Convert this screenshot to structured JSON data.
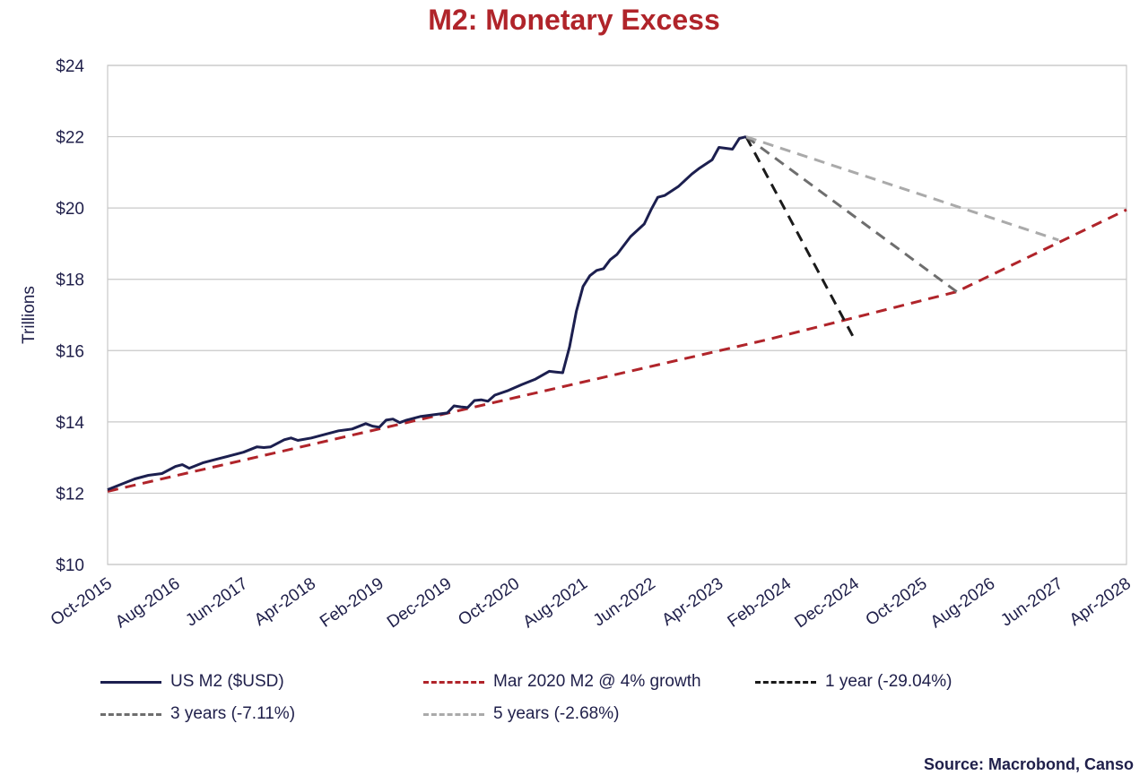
{
  "chart_data": {
    "type": "line",
    "title": "M2: Monetary Excess",
    "ylabel": "Trillions",
    "xlabel": "",
    "ylim": [
      10,
      24
    ],
    "yticks": [
      "$10",
      "$12",
      "$14",
      "$16",
      "$18",
      "$20",
      "$22",
      "$24"
    ],
    "xticks": [
      "Oct-2015",
      "Aug-2016",
      "Jun-2017",
      "Apr-2018",
      "Feb-2019",
      "Dec-2019",
      "Oct-2020",
      "Aug-2021",
      "Jun-2022",
      "Apr-2023",
      "Feb-2024",
      "Dec-2024",
      "Oct-2025",
      "Aug-2026",
      "Jun-2027",
      "Apr-2028"
    ],
    "x_range": [
      "2015-10",
      "2028-04"
    ],
    "grid": "horizontal",
    "legend_position": "bottom",
    "series": [
      {
        "name": "US M2 ($USD)",
        "color": "#1c1f4f",
        "style": "solid",
        "points": [
          [
            "2015-10",
            12.1
          ],
          [
            "2015-12",
            12.25
          ],
          [
            "2016-02",
            12.4
          ],
          [
            "2016-04",
            12.5
          ],
          [
            "2016-06",
            12.55
          ],
          [
            "2016-08",
            12.75
          ],
          [
            "2016-09",
            12.8
          ],
          [
            "2016-10",
            12.7
          ],
          [
            "2016-12",
            12.85
          ],
          [
            "2017-02",
            12.95
          ],
          [
            "2017-04",
            13.05
          ],
          [
            "2017-06",
            13.15
          ],
          [
            "2017-08",
            13.3
          ],
          [
            "2017-09",
            13.28
          ],
          [
            "2017-10",
            13.3
          ],
          [
            "2017-12",
            13.5
          ],
          [
            "2018-01",
            13.55
          ],
          [
            "2018-02",
            13.48
          ],
          [
            "2018-04",
            13.55
          ],
          [
            "2018-06",
            13.65
          ],
          [
            "2018-08",
            13.75
          ],
          [
            "2018-10",
            13.8
          ],
          [
            "2018-12",
            13.95
          ],
          [
            "2019-01",
            13.88
          ],
          [
            "2019-02",
            13.85
          ],
          [
            "2019-03",
            14.05
          ],
          [
            "2019-04",
            14.08
          ],
          [
            "2019-05",
            13.98
          ],
          [
            "2019-06",
            14.05
          ],
          [
            "2019-08",
            14.15
          ],
          [
            "2019-10",
            14.2
          ],
          [
            "2019-12",
            14.25
          ],
          [
            "2020-01",
            14.45
          ],
          [
            "2020-02",
            14.42
          ],
          [
            "2020-03",
            14.4
          ],
          [
            "2020-04",
            14.6
          ],
          [
            "2020-05",
            14.62
          ],
          [
            "2020-06",
            14.58
          ],
          [
            "2020-07",
            14.75
          ],
          [
            "2020-09",
            14.88
          ],
          [
            "2020-11",
            15.05
          ],
          [
            "2021-01",
            15.2
          ],
          [
            "2021-03",
            15.42
          ],
          [
            "2021-04",
            15.4
          ],
          [
            "2021-05",
            15.38
          ],
          [
            "2021-06",
            16.1
          ],
          [
            "2021-07",
            17.1
          ],
          [
            "2021-08",
            17.8
          ],
          [
            "2021-09",
            18.1
          ],
          [
            "2021-10",
            18.25
          ],
          [
            "2021-11",
            18.3
          ],
          [
            "2021-12",
            18.55
          ],
          [
            "2022-01",
            18.7
          ],
          [
            "2022-03",
            19.2
          ],
          [
            "2022-05",
            19.55
          ],
          [
            "2022-06",
            19.95
          ],
          [
            "2022-07",
            20.3
          ],
          [
            "2022-08",
            20.35
          ],
          [
            "2022-10",
            20.6
          ],
          [
            "2022-12",
            20.95
          ],
          [
            "2023-01",
            21.1
          ],
          [
            "2023-03",
            21.35
          ],
          [
            "2023-04",
            21.7
          ],
          [
            "2023-06",
            21.65
          ],
          [
            "2023-07",
            21.95
          ],
          [
            "2023-08",
            22.0
          ]
        ]
      },
      {
        "name": "Mar 2020 M2 @ 4% growth",
        "color": "#b0242a",
        "style": "dashed",
        "points": [
          [
            "2015-10",
            12.05
          ],
          [
            "2023-11",
            16.3
          ],
          [
            "2026-03",
            17.65
          ],
          [
            "2028-04",
            19.95
          ]
        ]
      },
      {
        "name": "1 year (-29.04%)",
        "color": "#1a1a1a",
        "style": "dashed",
        "points": [
          [
            "2023-08",
            22.0
          ],
          [
            "2024-12",
            16.3
          ]
        ]
      },
      {
        "name": "3 years (-7.11%)",
        "color": "#6e6e6e",
        "style": "dashed",
        "points": [
          [
            "2023-08",
            22.0
          ],
          [
            "2026-03",
            17.65
          ]
        ]
      },
      {
        "name": "5 years (-2.68%)",
        "color": "#aaaaaa",
        "style": "dashed",
        "points": [
          [
            "2023-08",
            22.0
          ],
          [
            "2027-06",
            19.1
          ]
        ]
      }
    ]
  },
  "source": "Source: Macrobond, Canso"
}
